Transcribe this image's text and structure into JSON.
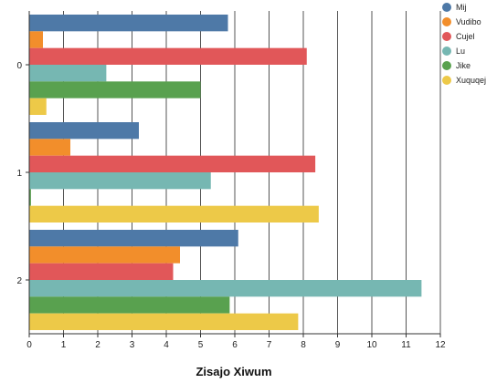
{
  "chart_data": {
    "type": "bar",
    "orientation": "horizontal",
    "categories": [
      "0",
      "1",
      "2"
    ],
    "xlabel": "Zisajo Xiwum",
    "ylabel": "",
    "xlim": [
      0,
      12
    ],
    "xticks": [
      0,
      1,
      2,
      3,
      4,
      5,
      6,
      7,
      8,
      9,
      10,
      11,
      12
    ],
    "grid": "vertical",
    "legend_position": "top-right",
    "series": [
      {
        "name": "Mij",
        "color": "#4e79a7",
        "values": [
          5.8,
          3.2,
          6.1
        ]
      },
      {
        "name": "Vudibo",
        "color": "#f28e2b",
        "values": [
          0.4,
          1.2,
          4.4
        ]
      },
      {
        "name": "Cujel",
        "color": "#e15759",
        "values": [
          8.1,
          8.35,
          4.2
        ]
      },
      {
        "name": "Lu",
        "color": "#76b7b2",
        "values": [
          2.25,
          5.3,
          11.45
        ]
      },
      {
        "name": "Jike",
        "color": "#59a14f",
        "values": [
          5.0,
          0.05,
          5.85
        ]
      },
      {
        "name": "Xuquqej",
        "color": "#edc948",
        "values": [
          0.5,
          8.45,
          7.85
        ]
      }
    ]
  }
}
